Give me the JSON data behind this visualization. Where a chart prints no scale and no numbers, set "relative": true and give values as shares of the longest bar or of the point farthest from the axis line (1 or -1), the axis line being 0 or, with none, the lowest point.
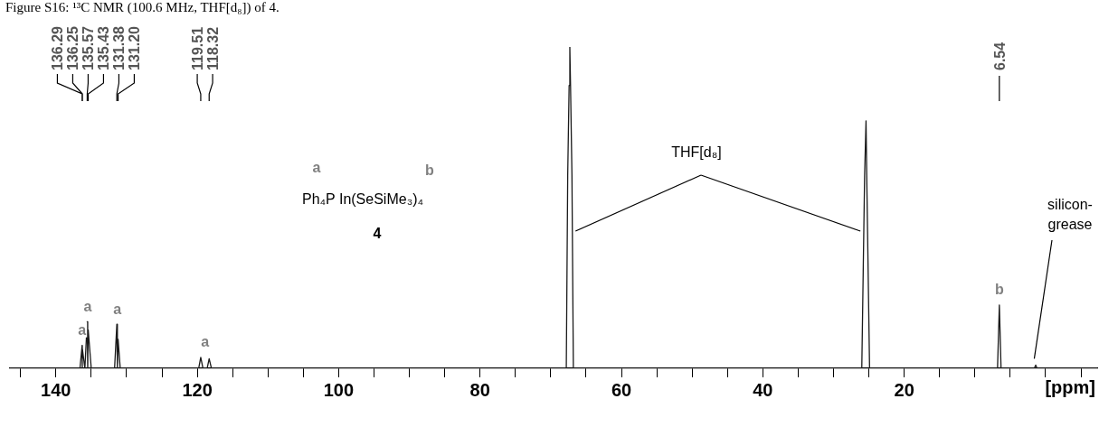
{
  "chart_data": {
    "type": "line",
    "title": "Figure S16: ¹³C NMR (100.6 MHz, THF[d₈]) of 4.",
    "xlabel": "[ppm]",
    "relative": true,
    "xlim": [
      146.5,
      -7.3
    ],
    "xticks": [
      {
        "value": 145,
        "label": null
      },
      140,
      {
        "value": 135,
        "label": null
      },
      {
        "value": 130,
        "label": null
      },
      {
        "value": 125,
        "label": null
      },
      120,
      {
        "value": 115,
        "label": null
      },
      {
        "value": 110,
        "label": null
      },
      {
        "value": 105,
        "label": null
      },
      100,
      {
        "value": 95,
        "label": null
      },
      {
        "value": 90,
        "label": null
      },
      {
        "value": 85,
        "label": null
      },
      80,
      {
        "value": 75,
        "label": null
      },
      {
        "value": 70,
        "label": null
      },
      {
        "value": 65,
        "label": null
      },
      60,
      {
        "value": 55,
        "label": null
      },
      {
        "value": 50,
        "label": null
      },
      {
        "value": 45,
        "label": null
      },
      40,
      {
        "value": 35,
        "label": null
      },
      {
        "value": 30,
        "label": null
      },
      {
        "value": 25,
        "label": null
      },
      20,
      {
        "value": 15,
        "label": null
      },
      {
        "value": 10,
        "label": null
      },
      {
        "value": 5,
        "label": null
      },
      {
        "value": 0,
        "label": null
      },
      {
        "value": -5,
        "label": null
      }
    ],
    "grid": false,
    "legend": false,
    "series": [
      {
        "color": "#1a1a1a",
        "x": [
          146.5,
          136.6,
          136.29,
          136.27,
          136.25,
          135.9,
          135.57,
          135.5,
          135.43,
          135.0,
          131.7,
          131.38,
          131.3,
          131.2,
          130.9,
          119.8,
          119.51,
          119.2,
          118.6,
          118.32,
          118.0,
          67.8,
          67.6,
          67.4,
          67.3,
          67.2,
          67.0,
          66.8,
          26.0,
          25.8,
          25.6,
          25.4,
          25.3,
          25.1,
          24.9,
          6.8,
          6.54,
          6.3,
          1.6,
          1.4,
          1.2,
          -7.3
        ],
        "values": [
          0,
          0,
          0.071,
          0,
          0.06,
          0,
          0.145,
          0,
          0.12,
          0,
          0,
          0.137,
          0,
          0.09,
          0,
          0,
          0.034,
          0,
          0,
          0.03,
          0,
          0,
          0.6,
          0.88,
          1,
          0.88,
          0.6,
          0,
          0,
          0.3,
          0.6,
          0.77,
          0.6,
          0.3,
          0,
          0,
          0.197,
          0,
          0,
          0.01,
          0,
          0
        ]
      }
    ],
    "annotations": [
      {
        "text": "136.29",
        "x": 136.29
      },
      {
        "text": "136.25",
        "x": 136.25
      },
      {
        "text": "135.57",
        "x": 135.57
      },
      {
        "text": "135.43",
        "x": 135.43
      },
      {
        "text": "131.38",
        "x": 131.38
      },
      {
        "text": "131.20",
        "x": 131.2
      },
      {
        "text": "119.51",
        "x": 119.51
      },
      {
        "text": "118.32",
        "x": 118.32
      },
      {
        "text": "6.54",
        "x": 6.54
      },
      {
        "text": "a",
        "x": 136.29,
        "y": 0.071
      },
      {
        "text": "a",
        "x": 135.5,
        "y": 0.145
      },
      {
        "text": "a",
        "x": 131.3,
        "y": 0.137
      },
      {
        "text": "a",
        "x": 118.9,
        "y": 0.034
      },
      {
        "text": "b",
        "x": 6.54,
        "y": 0.197
      },
      "a",
      "b",
      "Ph₄P In(SeSiMe₃)₄",
      "4",
      "THF[d₈]",
      "silicon-\ngrease"
    ]
  }
}
